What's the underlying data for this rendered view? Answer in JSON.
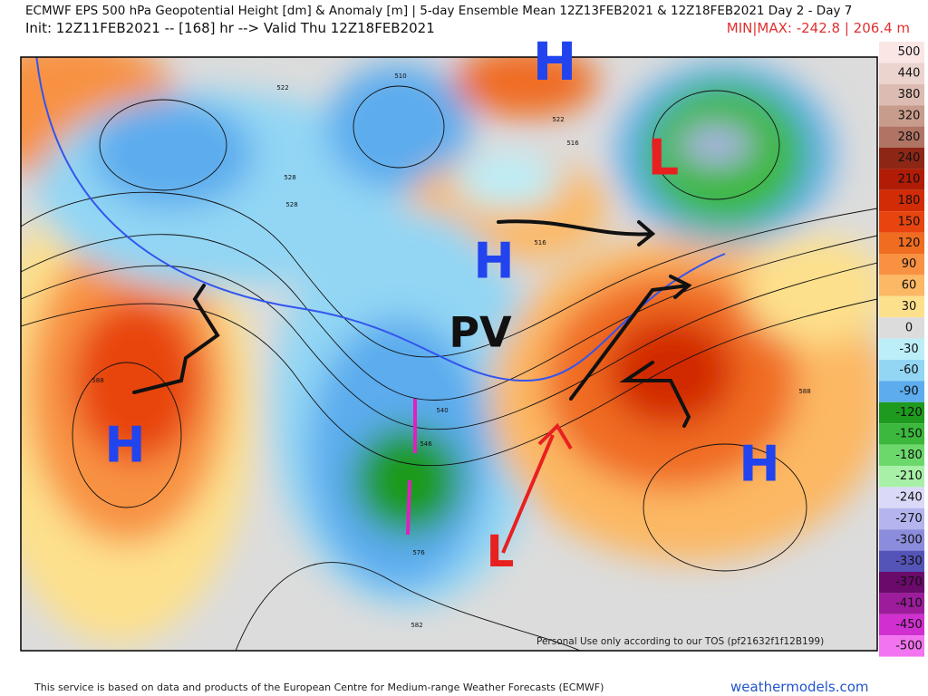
{
  "header": {
    "title": "ECMWF EPS 500 hPa Geopotential Height [dm] & Anomaly [m] | 5-day Ensemble Mean 12Z13FEB2021 & 12Z18FEB2021  Day 2 - Day 7",
    "init": "Init: 12Z11FEB2021 -- [168] hr --> Valid Thu 12Z18FEB2021",
    "minmax": "MIN|MAX: -242.8 | 206.4 m"
  },
  "map": {
    "annotations": [
      "H",
      "H",
      "H",
      "H",
      "L",
      "L",
      "PV"
    ],
    "contour_labels": [
      "510",
      "522",
      "528",
      "516",
      "522",
      "516",
      "528",
      "540",
      "546",
      "588",
      "588",
      "582",
      "576"
    ],
    "watermark": "Personal Use only according to our TOS (pf21632f1f12B199)"
  },
  "colorbar": {
    "levels": [
      500,
      440,
      380,
      320,
      280,
      240,
      210,
      180,
      150,
      120,
      90,
      60,
      30,
      0,
      -30,
      -60,
      -90,
      -120,
      -150,
      -180,
      -210,
      -240,
      -270,
      -300,
      -330,
      -370,
      -410,
      -450,
      -500
    ],
    "colors": [
      "#fbe6e6",
      "#ecd4ce",
      "#dcbcb2",
      "#c89c8c",
      "#b07464",
      "#8e2616",
      "#b01c06",
      "#d22c06",
      "#e84410",
      "#f06c20",
      "#f89242",
      "#fcb864",
      "#fde08c",
      "#dcdcdc",
      "#bceef8",
      "#92d6f4",
      "#5cacee",
      "#1e9a1e",
      "#3cb83c",
      "#6cd86c",
      "#a8f0a8",
      "#dadaf8",
      "#b4b4ee",
      "#8c8cdc",
      "#5454b8",
      "#6a0a6a",
      "#9c1c9c",
      "#d030d0",
      "#f274f0"
    ]
  },
  "footer": {
    "credit": "This service is based on data and products of the European Centre for Medium-range Weather Forecasts (ECMWF)",
    "site": "weathermodels.com"
  }
}
